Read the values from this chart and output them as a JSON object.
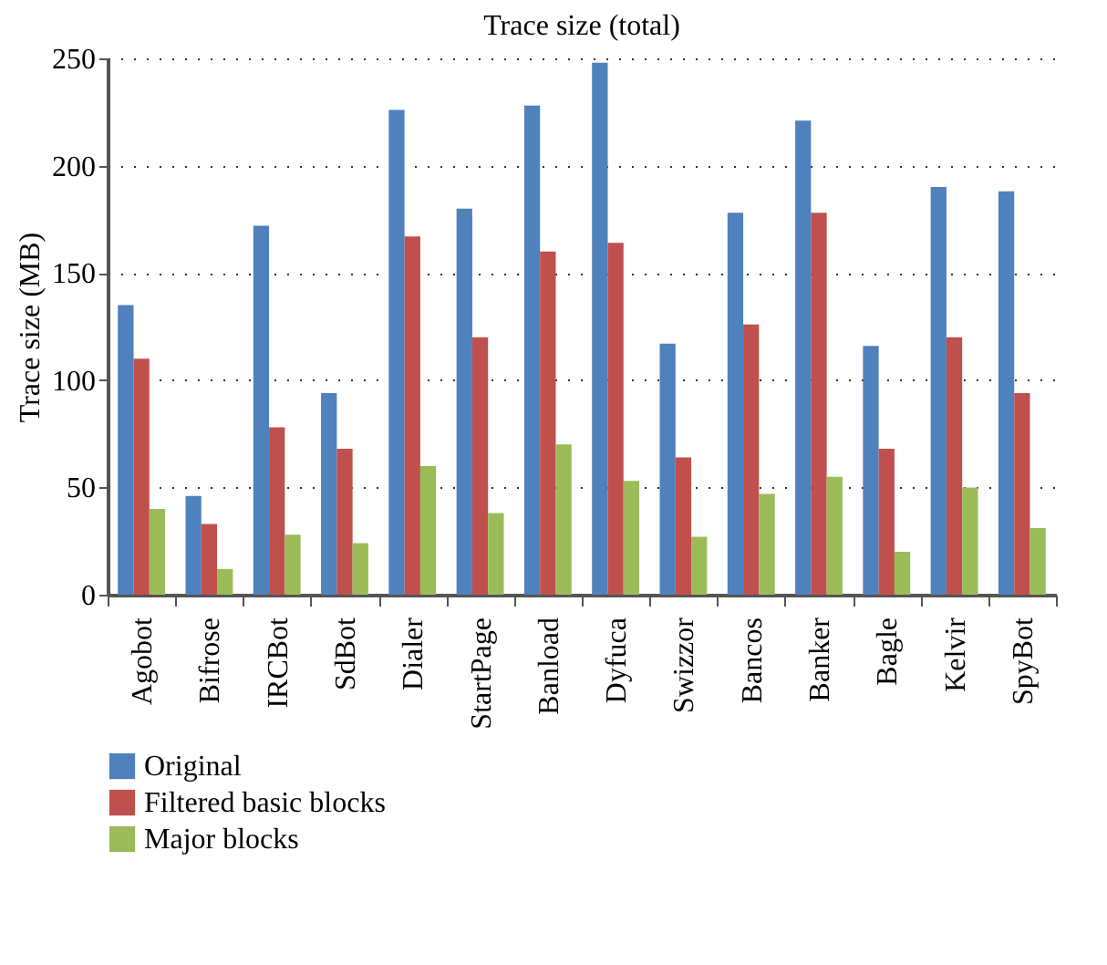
{
  "chart_data": {
    "type": "bar",
    "title": "Trace size (total)",
    "ylabel": "Trace size (MB)",
    "categories": [
      "Agobot",
      "Bifrose",
      "IRCBot",
      "SdBot",
      "Dialer",
      "StartPage",
      "Banload",
      "Dyfuca",
      "Swizzor",
      "Bancos",
      "Banker",
      "Bagle",
      "Kelvir",
      "SpyBot"
    ],
    "series": [
      {
        "name": "Original",
        "color": "#4f81bd",
        "values": [
          135,
          46,
          172,
          94,
          226,
          180,
          228,
          248,
          117,
          178,
          221,
          116,
          190,
          188
        ]
      },
      {
        "name": "Filtered basic blocks",
        "color": "#c0504d",
        "values": [
          110,
          33,
          78,
          68,
          167,
          120,
          160,
          164,
          64,
          126,
          178,
          68,
          120,
          94
        ]
      },
      {
        "name": "Major blocks",
        "color": "#9bbb59",
        "values": [
          40,
          12,
          28,
          24,
          60,
          38,
          70,
          53,
          27,
          47,
          55,
          20,
          50,
          31
        ]
      }
    ],
    "ylim": [
      0,
      250
    ],
    "yticks": [
      0,
      50,
      100,
      150,
      200,
      250
    ],
    "grid": "y",
    "legend": "bottom"
  }
}
